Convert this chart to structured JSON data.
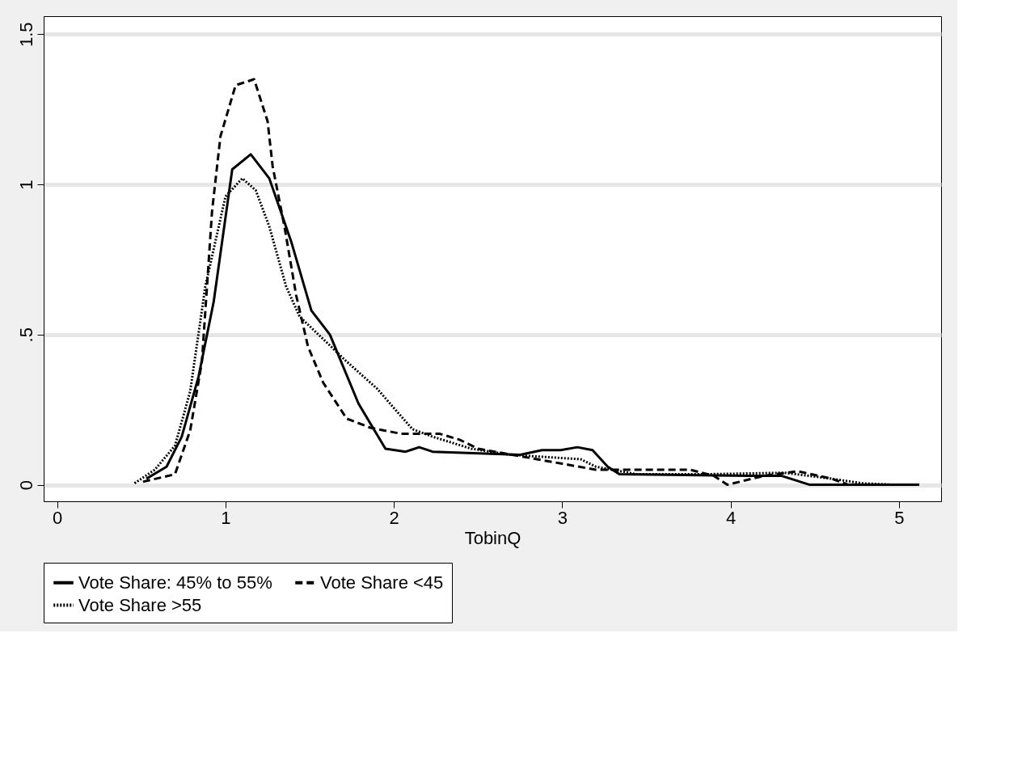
{
  "chart_data": {
    "type": "line",
    "xlabel": "TobinQ",
    "xlim": [
      -0.08,
      5.25
    ],
    "ylim": [
      -0.055,
      1.56
    ],
    "xticks": [
      0,
      1,
      2,
      3,
      4,
      5
    ],
    "yticks": [
      0,
      {
        "value": 0.5,
        "label": ".5"
      },
      1,
      1.5
    ],
    "grid": "y",
    "legend": "bottom",
    "series": [
      {
        "name": "Vote Share: 45% to 55%",
        "color": "#000000",
        "line_style": "solid",
        "x": [
          0.53,
          0.65,
          0.74,
          0.84,
          0.93,
          1.04,
          1.15,
          1.26,
          1.39,
          1.51,
          1.62,
          1.79,
          1.95,
          2.07,
          2.15,
          2.23,
          2.75,
          2.88,
          2.99,
          3.09,
          3.18,
          3.27,
          3.34,
          4.1,
          4.3,
          4.47,
          5.12
        ],
        "values": [
          0.02,
          0.06,
          0.16,
          0.36,
          0.61,
          1.05,
          1.1,
          1.02,
          0.81,
          0.58,
          0.5,
          0.27,
          0.12,
          0.11,
          0.125,
          0.11,
          0.1,
          0.115,
          0.115,
          0.125,
          0.115,
          0.06,
          0.035,
          0.03,
          0.03,
          0.0,
          0.0
        ]
      },
      {
        "name": "Vote Share <45",
        "color": "#000000",
        "line_style": "dashed",
        "x": [
          0.51,
          0.7,
          0.79,
          0.86,
          0.92,
          0.97,
          1.06,
          1.17,
          1.25,
          1.28,
          1.35,
          1.42,
          1.49,
          1.58,
          1.72,
          1.86,
          2.04,
          2.27,
          2.39,
          2.5,
          2.8,
          3.0,
          3.2,
          3.76,
          3.9,
          3.98,
          4.2,
          4.4,
          4.6,
          4.7
        ],
        "values": [
          0.01,
          0.035,
          0.18,
          0.41,
          0.91,
          1.16,
          1.33,
          1.35,
          1.21,
          1.06,
          0.86,
          0.63,
          0.46,
          0.34,
          0.22,
          0.19,
          0.17,
          0.17,
          0.15,
          0.12,
          0.09,
          0.07,
          0.05,
          0.05,
          0.03,
          0.0,
          0.03,
          0.045,
          0.02,
          0.0
        ]
      },
      {
        "name": "Vote Share >55",
        "color": "#000000",
        "line_style": "dotted",
        "x": [
          0.46,
          0.58,
          0.7,
          0.79,
          0.88,
          1.0,
          1.1,
          1.18,
          1.26,
          1.36,
          1.44,
          1.58,
          1.72,
          1.9,
          2.11,
          2.23,
          2.46,
          2.69,
          3.11,
          3.2,
          3.44,
          3.85,
          4.32,
          4.6,
          4.78,
          4.97
        ],
        "values": [
          0.005,
          0.05,
          0.13,
          0.31,
          0.66,
          0.96,
          1.02,
          0.98,
          0.86,
          0.66,
          0.56,
          0.485,
          0.41,
          0.32,
          0.185,
          0.16,
          0.12,
          0.1,
          0.085,
          0.06,
          0.035,
          0.035,
          0.04,
          0.02,
          0.005,
          0.0
        ]
      }
    ]
  }
}
